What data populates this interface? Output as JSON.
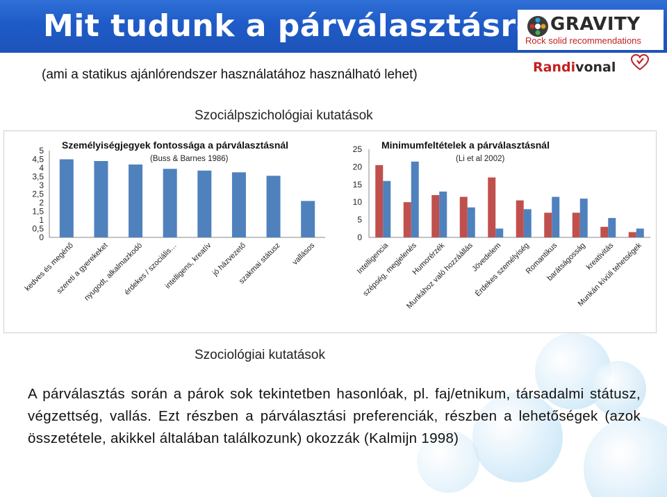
{
  "header": {
    "title": "Mit tudunk a párválasztásról",
    "brand_name": "GRAVITY",
    "brand_tagline": "Rock solid recommendations",
    "partner_logo_part1": "Randi",
    "partner_logo_part2": "vonal"
  },
  "subtitle": "(ami a statikus ajánlórendszer használatához használható lehet)",
  "section1_label": "Szociálpszichológiai kutatások",
  "chart_data": [
    {
      "type": "bar",
      "title": "Személyiségjegyek fontossága a párválasztásnál",
      "subtitle": "(Buss & Barnes 1986)",
      "categories": [
        "kedves és megértő",
        "szereti a gyerekeket",
        "nyugodt, alkalmazkodó",
        "érdekes / szociális…",
        "intelligens, kreatív",
        "jó házvezető",
        "szakmai státusz",
        "vallásos"
      ],
      "values": [
        4.5,
        4.4,
        4.2,
        3.95,
        3.85,
        3.75,
        3.55,
        2.1
      ],
      "ylim": [
        0,
        5
      ],
      "yticks": [
        "0",
        "0,5",
        "1",
        "1,5",
        "2",
        "2,5",
        "3",
        "3,5",
        "4",
        "4,5",
        "5"
      ],
      "color": "#4f81bd"
    },
    {
      "type": "bar",
      "title": "Minimumfeltételek a párválasztásnál",
      "subtitle": "(Li et al 2002)",
      "categories": [
        "Intelligencia",
        "szépség, megjelenés",
        "Humorérzék",
        "Munkához való hozzáállás",
        "Jövedelem",
        "Érdekes személyiség",
        "Romantikus",
        "barátságosság",
        "kreativitás",
        "Munkán kívüli tehetségek"
      ],
      "series": [
        {
          "values": [
            20.5,
            10,
            12,
            11.5,
            17,
            10.5,
            7,
            7,
            3,
            1.5
          ],
          "color": "#c0504d"
        },
        {
          "values": [
            16,
            21.5,
            13,
            8.5,
            2.5,
            8,
            11.5,
            11,
            5.5,
            2.5
          ],
          "color": "#4f81bd"
        }
      ],
      "ylim": [
        0,
        25
      ],
      "yticks": [
        "0",
        "5",
        "10",
        "15",
        "20",
        "25"
      ]
    }
  ],
  "section2_label": "Szociológiai kutatások",
  "paragraph": "A párválasztás során a párok sok tekintetben hasonlóak, pl. faj/etnikum, társadalmi státusz, végzettség, vallás. Ezt részben a párválasztási preferenciák, részben a lehetőségek (azok összetétele, akikkel általában találkozunk) okozzák (Kalmijn 1998)"
}
